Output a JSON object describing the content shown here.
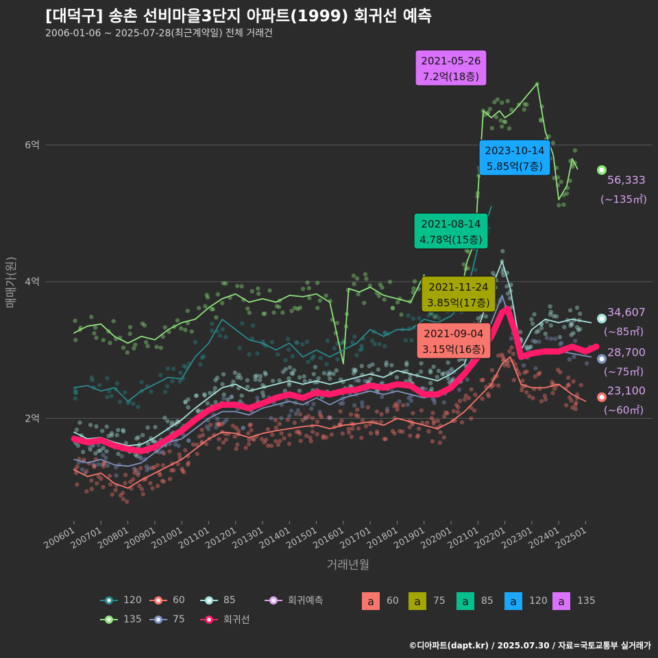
{
  "header": {
    "title": "[대덕구] 송촌 선비마을3단지 아파트(1999) 회귀선 예측",
    "subtitle": "2006-01-06 ~ 2025-07-28(최근계약일) 전체 거래건"
  },
  "footer": "©디아파트(dapt.kr) / 2025.07.30 / 자료=국토교통부 실거래가",
  "chart_data": {
    "type": "line",
    "xlabel": "거래년월",
    "ylabel": "매매가(원)",
    "ylim": [
      0.5,
      7.5
    ],
    "yticks": [
      {
        "v": 2,
        "label": "2억"
      },
      {
        "v": 4,
        "label": "4억"
      },
      {
        "v": 6,
        "label": "6억"
      }
    ],
    "xlim": [
      2006.0,
      2025.9
    ],
    "xticks": [
      "200601",
      "200701",
      "200801",
      "200901",
      "201001",
      "201101",
      "201201",
      "201301",
      "201401",
      "201501",
      "201601",
      "201701",
      "201801",
      "201901",
      "202001",
      "202101",
      "202201",
      "202301",
      "202401",
      "202501"
    ],
    "grid": true,
    "colors": {
      "60": "#f8766d",
      "75": "#7f93c0",
      "85": "#a6e3dc",
      "120": "#2a8a8e",
      "135": "#8fe27c",
      "trend": "#ff1a6a",
      "forecast": "#d7a4ee"
    },
    "series": [
      {
        "name": "135",
        "values": [
          [
            2006.0,
            3.25
          ],
          [
            2006.5,
            3.35
          ],
          [
            2007.0,
            3.38
          ],
          [
            2007.5,
            3.2
          ],
          [
            2008.0,
            3.1
          ],
          [
            2008.5,
            3.2
          ],
          [
            2009.0,
            3.15
          ],
          [
            2009.5,
            3.3
          ],
          [
            2010.0,
            3.4
          ],
          [
            2010.5,
            3.45
          ],
          [
            2011.0,
            3.62
          ],
          [
            2011.5,
            3.75
          ],
          [
            2012.0,
            3.82
          ],
          [
            2012.5,
            3.7
          ],
          [
            2013.0,
            3.75
          ],
          [
            2013.5,
            3.7
          ],
          [
            2014.0,
            3.8
          ],
          [
            2014.5,
            3.78
          ],
          [
            2015.0,
            3.82
          ],
          [
            2015.5,
            3.7
          ],
          [
            2016.0,
            2.8
          ],
          [
            2016.2,
            3.9
          ],
          [
            2016.6,
            3.85
          ],
          [
            2017.0,
            3.92
          ],
          [
            2017.5,
            3.8
          ],
          [
            2018.0,
            3.75
          ],
          [
            2018.5,
            3.7
          ],
          [
            2019.0,
            4.1
          ],
          [
            2019.3,
            3.6
          ],
          [
            2019.6,
            3.9
          ],
          [
            2020.0,
            3.85
          ],
          [
            2020.4,
            3.9
          ],
          [
            2020.6,
            4.3
          ],
          [
            2020.9,
            4.6
          ],
          [
            2021.0,
            5.3
          ],
          [
            2021.2,
            6.5
          ],
          [
            2021.5,
            6.4
          ],
          [
            2021.8,
            6.5
          ],
          [
            2022.0,
            6.4
          ],
          [
            2022.3,
            6.48
          ],
          [
            2023.2,
            6.9
          ],
          [
            2023.5,
            6.2
          ],
          [
            2023.8,
            5.85
          ],
          [
            2024.0,
            5.2
          ],
          [
            2024.3,
            5.4
          ],
          [
            2024.5,
            5.8
          ],
          [
            2024.7,
            5.65
          ]
        ]
      },
      {
        "name": "120",
        "values": [
          [
            2006.0,
            2.45
          ],
          [
            2006.5,
            2.48
          ],
          [
            2007.0,
            2.4
          ],
          [
            2007.5,
            2.45
          ],
          [
            2008.0,
            2.25
          ],
          [
            2008.5,
            2.4
          ],
          [
            2009.0,
            2.5
          ],
          [
            2009.5,
            2.6
          ],
          [
            2010.0,
            2.58
          ],
          [
            2010.5,
            2.9
          ],
          [
            2011.0,
            3.1
          ],
          [
            2011.5,
            3.45
          ],
          [
            2012.5,
            3.15
          ],
          [
            2013.0,
            3.1
          ],
          [
            2013.5,
            3.0
          ],
          [
            2014.0,
            3.1
          ],
          [
            2014.5,
            2.9
          ],
          [
            2015.0,
            3.0
          ],
          [
            2015.5,
            2.9
          ],
          [
            2016.0,
            3.0
          ],
          [
            2016.5,
            3.1
          ],
          [
            2017.0,
            3.3
          ],
          [
            2017.5,
            3.2
          ],
          [
            2018.0,
            3.3
          ],
          [
            2018.5,
            3.3
          ],
          [
            2019.0,
            3.45
          ],
          [
            2019.5,
            3.4
          ],
          [
            2020.0,
            3.5
          ],
          [
            2020.5,
            3.7
          ],
          [
            2021.0,
            4.5
          ],
          [
            2021.5,
            5.1
          ]
        ]
      },
      {
        "name": "85",
        "values": [
          [
            2006.0,
            1.8
          ],
          [
            2006.5,
            1.7
          ],
          [
            2007.0,
            1.72
          ],
          [
            2007.5,
            1.65
          ],
          [
            2008.0,
            1.6
          ],
          [
            2008.5,
            1.62
          ],
          [
            2009.0,
            1.72
          ],
          [
            2009.5,
            1.85
          ],
          [
            2010.0,
            1.98
          ],
          [
            2010.5,
            2.15
          ],
          [
            2011.0,
            2.3
          ],
          [
            2011.5,
            2.45
          ],
          [
            2012.0,
            2.5
          ],
          [
            2012.5,
            2.4
          ],
          [
            2013.0,
            2.45
          ],
          [
            2013.5,
            2.5
          ],
          [
            2014.0,
            2.55
          ],
          [
            2014.5,
            2.5
          ],
          [
            2015.0,
            2.55
          ],
          [
            2015.5,
            2.5
          ],
          [
            2016.0,
            2.55
          ],
          [
            2016.5,
            2.6
          ],
          [
            2017.0,
            2.65
          ],
          [
            2017.5,
            2.6
          ],
          [
            2018.0,
            2.7
          ],
          [
            2018.5,
            2.65
          ],
          [
            2019.0,
            2.6
          ],
          [
            2019.5,
            2.55
          ],
          [
            2020.0,
            2.65
          ],
          [
            2020.5,
            2.8
          ],
          [
            2021.0,
            3.3
          ],
          [
            2021.5,
            3.9
          ],
          [
            2021.9,
            4.3
          ],
          [
            2022.2,
            3.9
          ],
          [
            2022.6,
            3.0
          ],
          [
            2023.0,
            3.3
          ],
          [
            2023.5,
            3.45
          ],
          [
            2024.0,
            3.4
          ],
          [
            2024.5,
            3.45
          ],
          [
            2025.2,
            3.4
          ]
        ]
      },
      {
        "name": "75",
        "values": [
          [
            2006.0,
            1.4
          ],
          [
            2006.5,
            1.35
          ],
          [
            2007.0,
            1.4
          ],
          [
            2007.5,
            1.32
          ],
          [
            2008.0,
            1.3
          ],
          [
            2008.5,
            1.35
          ],
          [
            2009.0,
            1.5
          ],
          [
            2009.5,
            1.65
          ],
          [
            2010.0,
            1.7
          ],
          [
            2010.5,
            1.85
          ],
          [
            2011.0,
            2.0
          ],
          [
            2011.5,
            2.1
          ],
          [
            2012.0,
            2.1
          ],
          [
            2012.5,
            2.05
          ],
          [
            2013.0,
            2.15
          ],
          [
            2013.5,
            2.2
          ],
          [
            2014.0,
            2.25
          ],
          [
            2014.5,
            2.2
          ],
          [
            2015.0,
            2.3
          ],
          [
            2015.5,
            2.2
          ],
          [
            2016.0,
            2.3
          ],
          [
            2016.5,
            2.35
          ],
          [
            2017.0,
            2.4
          ],
          [
            2017.5,
            2.35
          ],
          [
            2018.0,
            2.4
          ],
          [
            2018.5,
            2.35
          ],
          [
            2019.0,
            2.3
          ],
          [
            2019.5,
            2.35
          ],
          [
            2020.0,
            2.5
          ],
          [
            2020.5,
            2.7
          ],
          [
            2021.0,
            3.0
          ],
          [
            2021.5,
            3.4
          ],
          [
            2021.9,
            3.8
          ],
          [
            2022.3,
            3.3
          ],
          [
            2022.7,
            2.9
          ],
          [
            2023.2,
            2.95
          ],
          [
            2023.8,
            3.0
          ],
          [
            2024.5,
            2.95
          ],
          [
            2025.2,
            2.9
          ]
        ]
      },
      {
        "name": "60",
        "values": [
          [
            2006.0,
            1.25
          ],
          [
            2006.5,
            1.15
          ],
          [
            2007.0,
            1.2
          ],
          [
            2007.5,
            1.05
          ],
          [
            2008.0,
            0.98
          ],
          [
            2008.5,
            1.1
          ],
          [
            2009.0,
            1.2
          ],
          [
            2009.5,
            1.3
          ],
          [
            2010.0,
            1.4
          ],
          [
            2010.5,
            1.55
          ],
          [
            2011.0,
            1.7
          ],
          [
            2011.5,
            1.8
          ],
          [
            2012.0,
            1.78
          ],
          [
            2012.5,
            1.72
          ],
          [
            2013.0,
            1.78
          ],
          [
            2013.5,
            1.82
          ],
          [
            2014.0,
            1.85
          ],
          [
            2014.5,
            1.88
          ],
          [
            2015.0,
            1.9
          ],
          [
            2015.5,
            1.85
          ],
          [
            2016.0,
            1.9
          ],
          [
            2016.5,
            1.92
          ],
          [
            2017.0,
            1.95
          ],
          [
            2017.5,
            1.9
          ],
          [
            2018.0,
            2.0
          ],
          [
            2018.5,
            1.95
          ],
          [
            2019.0,
            1.9
          ],
          [
            2019.5,
            1.85
          ],
          [
            2020.0,
            1.95
          ],
          [
            2020.5,
            2.1
          ],
          [
            2021.0,
            2.3
          ],
          [
            2021.5,
            2.5
          ],
          [
            2021.9,
            2.8
          ],
          [
            2022.2,
            2.9
          ],
          [
            2022.6,
            2.5
          ],
          [
            2023.0,
            2.45
          ],
          [
            2023.5,
            2.45
          ],
          [
            2024.0,
            2.5
          ],
          [
            2024.5,
            2.35
          ],
          [
            2025.0,
            2.25
          ]
        ]
      },
      {
        "name": "회귀선",
        "values": [
          [
            2006.0,
            1.7
          ],
          [
            2006.5,
            1.65
          ],
          [
            2007.0,
            1.68
          ],
          [
            2007.5,
            1.6
          ],
          [
            2008.0,
            1.55
          ],
          [
            2008.5,
            1.52
          ],
          [
            2009.0,
            1.58
          ],
          [
            2009.5,
            1.7
          ],
          [
            2010.0,
            1.82
          ],
          [
            2010.5,
            1.98
          ],
          [
            2011.0,
            2.12
          ],
          [
            2011.5,
            2.2
          ],
          [
            2012.0,
            2.2
          ],
          [
            2012.5,
            2.15
          ],
          [
            2013.0,
            2.22
          ],
          [
            2013.5,
            2.3
          ],
          [
            2014.0,
            2.35
          ],
          [
            2014.5,
            2.3
          ],
          [
            2015.0,
            2.38
          ],
          [
            2015.5,
            2.35
          ],
          [
            2016.0,
            2.4
          ],
          [
            2016.5,
            2.42
          ],
          [
            2017.0,
            2.48
          ],
          [
            2017.5,
            2.45
          ],
          [
            2018.0,
            2.5
          ],
          [
            2018.5,
            2.48
          ],
          [
            2019.0,
            2.35
          ],
          [
            2019.5,
            2.35
          ],
          [
            2020.0,
            2.45
          ],
          [
            2020.5,
            2.65
          ],
          [
            2021.0,
            2.9
          ],
          [
            2021.5,
            3.2
          ],
          [
            2021.9,
            3.55
          ],
          [
            2022.1,
            3.6
          ],
          [
            2022.4,
            3.25
          ],
          [
            2022.6,
            2.9
          ],
          [
            2023.0,
            2.95
          ],
          [
            2023.5,
            2.98
          ],
          [
            2024.0,
            2.98
          ],
          [
            2024.5,
            3.05
          ],
          [
            2025.0,
            2.98
          ],
          [
            2025.4,
            3.05
          ]
        ]
      }
    ],
    "forecast_points": [
      {
        "group": "135",
        "x": 2025.6,
        "y": 5.6333,
        "value": "56,333",
        "area": "(~135㎡)"
      },
      {
        "group": "85",
        "x": 2025.6,
        "y": 3.4607,
        "value": "34,607",
        "area": "(~85㎡)"
      },
      {
        "group": "75",
        "x": 2025.6,
        "y": 2.87,
        "value": "28,700",
        "area": "(~75㎡)"
      },
      {
        "group": "60",
        "x": 2025.6,
        "y": 2.31,
        "value": "23,100",
        "area": "(~60㎡)"
      }
    ],
    "annotations": [
      {
        "date": "2021-05-26",
        "value": "7.2억(18층)",
        "group": "135",
        "color": "#db72fb",
        "x": 2021.4,
        "y": 7.2
      },
      {
        "date": "2023-10-14",
        "value": "5.85억(7층)",
        "group": "120",
        "color": "#1aa7ff",
        "x": 2023.8,
        "y": 5.85
      },
      {
        "date": "2021-08-14",
        "value": "4.78억(15층)",
        "group": "85",
        "color": "#05c08c",
        "x": 2021.6,
        "y": 4.78
      },
      {
        "date": "2021-11-24",
        "value": "3.85억(17층)",
        "group": "75",
        "color": "#a3a500",
        "x": 2021.9,
        "y": 3.85
      },
      {
        "date": "2021-09-04",
        "value": "3.15억(16층)",
        "group": "60",
        "color": "#f8766d",
        "x": 2021.7,
        "y": 3.15
      }
    ]
  },
  "legend": {
    "lines": [
      {
        "label": "120",
        "color": "#2a8a8e"
      },
      {
        "label": "60",
        "color": "#f8766d"
      },
      {
        "label": "85",
        "color": "#a6e3dc"
      },
      {
        "label": "회귀예측",
        "color": "#d7a4ee"
      },
      {
        "label": "135",
        "color": "#8fe27c"
      },
      {
        "label": "75",
        "color": "#7f93c0"
      },
      {
        "label": "회귀선",
        "color": "#ff1a6a"
      }
    ],
    "boxes": [
      {
        "label": "60",
        "glyph": "a",
        "color": "#f8766d"
      },
      {
        "label": "75",
        "glyph": "a",
        "color": "#a3a500"
      },
      {
        "label": "85",
        "glyph": "a",
        "color": "#05c08c"
      },
      {
        "label": "120",
        "glyph": "a",
        "color": "#1aa7ff"
      },
      {
        "label": "135",
        "glyph": "a",
        "color": "#db72fb"
      }
    ]
  }
}
